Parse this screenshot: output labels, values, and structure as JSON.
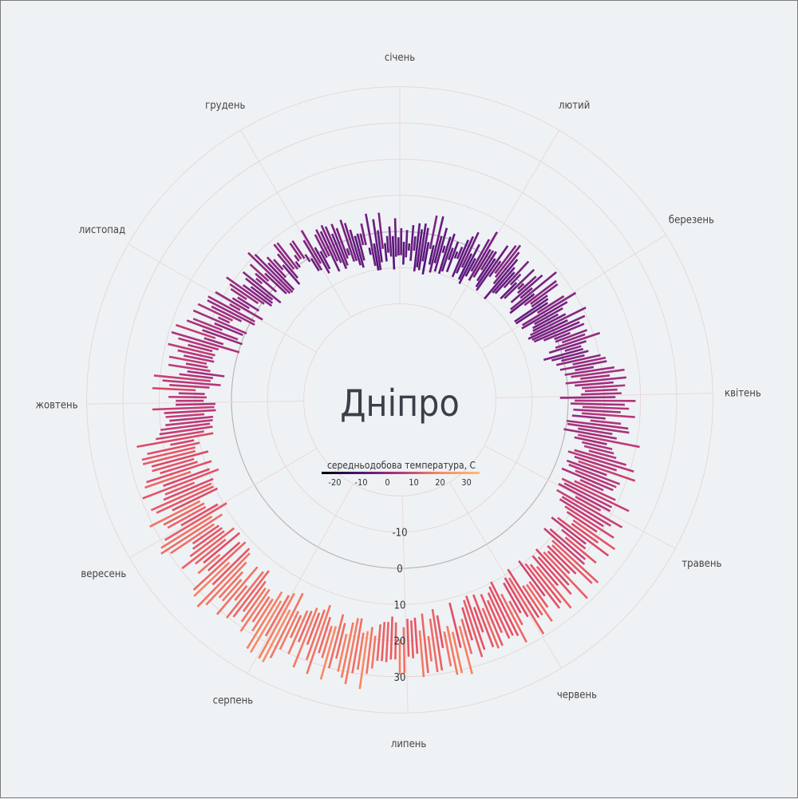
{
  "chart_data": {
    "type": "polar-bar",
    "title": "Дніпро",
    "months": [
      "січень",
      "лютий",
      "березень",
      "квітень",
      "травень",
      "червень",
      "липень",
      "серпень",
      "вересень",
      "жовтень",
      "листопад",
      "грудень"
    ],
    "radial_ticks": [
      -10,
      0,
      10,
      20,
      30
    ],
    "radial_range": [
      -30,
      45
    ],
    "legend": {
      "title": "середньодобова температура, С",
      "ticks": [
        -20,
        -10,
        0,
        10,
        20,
        30
      ],
      "range": [
        -25,
        35
      ]
    },
    "monthly_avg_max": [
      1,
      4,
      10,
      17,
      24,
      27,
      31,
      30,
      24,
      15,
      7,
      1
    ],
    "monthly_avg_min": [
      -8,
      -6,
      -2,
      4,
      10,
      15,
      17,
      16,
      10,
      4,
      -1,
      -6
    ],
    "days_per_month": [
      31,
      28,
      31,
      30,
      31,
      30,
      31,
      31,
      30,
      31,
      30,
      31
    ],
    "grid": true
  }
}
